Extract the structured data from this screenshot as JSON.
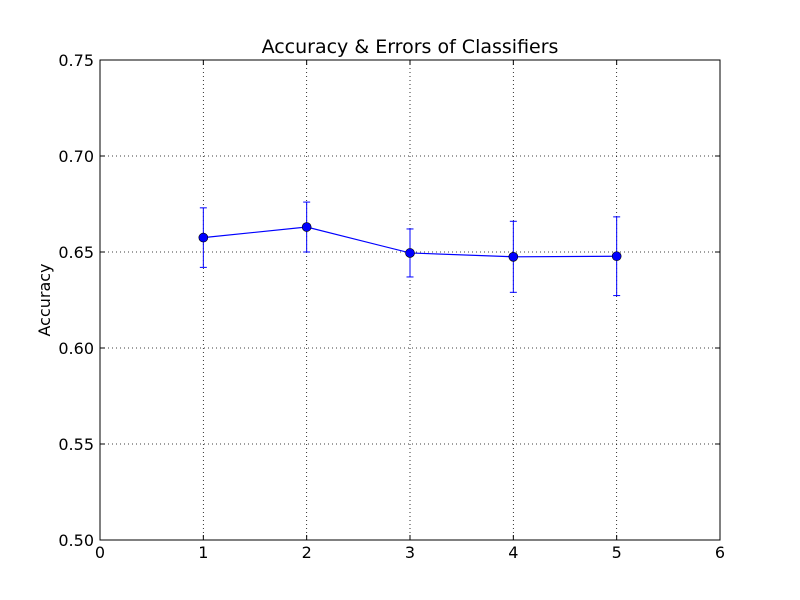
{
  "chart_data": {
    "type": "line",
    "title": "Accuracy & Errors of Classifiers",
    "xlabel": "",
    "ylabel": "Accuracy",
    "xlim": [
      0,
      6
    ],
    "ylim": [
      0.5,
      0.75
    ],
    "x_ticks": [
      "0",
      "1",
      "2",
      "3",
      "4",
      "5",
      "6"
    ],
    "y_ticks": [
      "0.50",
      "0.55",
      "0.60",
      "0.65",
      "0.70",
      "0.75"
    ],
    "grid": true,
    "grid_style": "dotted",
    "series": [
      {
        "x": [
          1,
          2,
          3,
          4,
          5
        ],
        "y": [
          0.6575,
          0.663,
          0.6495,
          0.6475,
          0.6478
        ],
        "error": [
          0.0155,
          0.013,
          0.0125,
          0.0185,
          0.0205
        ],
        "color": "#0000ff",
        "marker": "circle",
        "errorbars": true
      }
    ]
  }
}
